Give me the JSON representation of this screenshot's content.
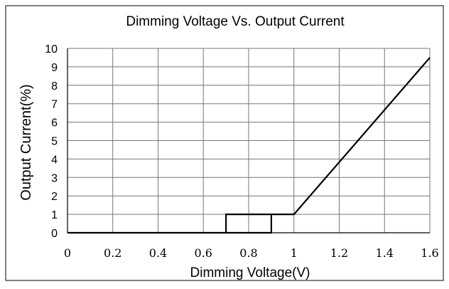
{
  "chart_data": {
    "type": "line",
    "title": "Dimming Voltage Vs. Output Current",
    "xlabel": "Dimming Voltage(V)",
    "ylabel": "Output Current(%)",
    "xlim": [
      0,
      1.6
    ],
    "ylim": [
      0,
      10
    ],
    "x_ticks": [
      "0",
      "0.2",
      "0.4",
      "0.6",
      "0.8",
      "1",
      "1.2",
      "1.4",
      "1.6"
    ],
    "y_ticks": [
      "0",
      "1",
      "2",
      "3",
      "4",
      "5",
      "6",
      "7",
      "8",
      "9",
      "10"
    ],
    "grid": true,
    "series": [
      {
        "x": [
          0,
          0.7,
          0.7,
          0.9,
          0.9,
          0.7,
          0.7,
          1.0,
          1.6
        ],
        "y": [
          0,
          0,
          1,
          1,
          0,
          0,
          1,
          1,
          9.5
        ]
      }
    ],
    "colors": {
      "line": "#000000",
      "grid": "#777777",
      "axis": "#000000"
    }
  }
}
